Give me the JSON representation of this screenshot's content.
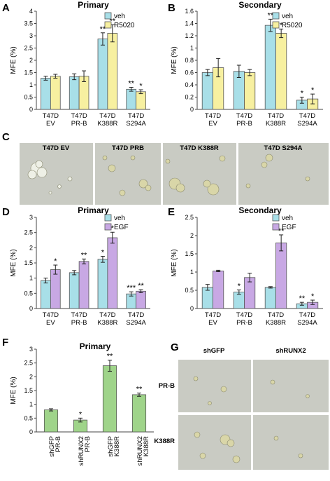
{
  "panel_letters": [
    "A",
    "B",
    "C",
    "D",
    "E",
    "F",
    "G"
  ],
  "colors": {
    "veh": "#a8dfe8",
    "r5020": "#f7f0a0",
    "egf": "#c8a8e4",
    "green": "#9fd48a",
    "photo_bg": "#c9cbc3"
  },
  "chart_data": [
    {
      "id": "A",
      "type": "bar",
      "title": "Primary",
      "ylabel": "MFE (%)",
      "ylim": [
        0,
        4
      ],
      "yticks": [
        "0",
        "0.5",
        "1",
        "1.5",
        "2",
        "2.5",
        "3",
        "3.5",
        "4"
      ],
      "categories": [
        [
          "T47D",
          "EV"
        ],
        [
          "T47D",
          "PR-B"
        ],
        [
          "T47D",
          "K388R"
        ],
        [
          "T47D",
          "S294A"
        ]
      ],
      "legend": [
        "veh",
        "R5020"
      ],
      "series": [
        {
          "name": "veh",
          "color": "#a8dfe8",
          "values": [
            1.27,
            1.33,
            2.87,
            0.82
          ],
          "errors": [
            0.08,
            0.12,
            0.25,
            0.08
          ],
          "stars": [
            "",
            "",
            "**",
            "**"
          ]
        },
        {
          "name": "R5020",
          "color": "#f7f0a0",
          "values": [
            1.35,
            1.35,
            3.1,
            0.72
          ],
          "errors": [
            0.08,
            0.22,
            0.35,
            0.08
          ],
          "stars": [
            "",
            "",
            "**",
            "*"
          ]
        }
      ]
    },
    {
      "id": "B",
      "type": "bar",
      "title": "Secondary",
      "ylabel": "MFE (%)",
      "ylim": [
        0,
        1.6
      ],
      "yticks": [
        "0",
        "0.2",
        "0.4",
        "0.6",
        "0.8",
        "1",
        "1.2",
        "1.4",
        "1.6"
      ],
      "categories": [
        [
          "T47D",
          "EV"
        ],
        [
          "T47D",
          "PR-B"
        ],
        [
          "T47D",
          "K388R"
        ],
        [
          "T47D",
          "S294A"
        ]
      ],
      "legend": [
        "veh",
        "R5020"
      ],
      "series": [
        {
          "name": "veh",
          "color": "#a8dfe8",
          "values": [
            0.6,
            0.62,
            1.37,
            0.15
          ],
          "errors": [
            0.05,
            0.1,
            0.1,
            0.05
          ],
          "stars": [
            "",
            "",
            "**",
            "*"
          ]
        },
        {
          "name": "R5020",
          "color": "#f7f0a0",
          "values": [
            0.68,
            0.6,
            1.24,
            0.17
          ],
          "errors": [
            0.15,
            0.05,
            0.07,
            0.08
          ],
          "stars": [
            "",
            "",
            "*",
            "*"
          ]
        }
      ]
    },
    {
      "id": "D",
      "type": "bar",
      "title": "Primary",
      "ylabel": "MFE (%)",
      "ylim": [
        0,
        3
      ],
      "yticks": [
        "0",
        "0.5",
        "1",
        "1.5",
        "2",
        "2.5",
        "3"
      ],
      "categories": [
        [
          "T47D",
          "EV"
        ],
        [
          "T47D",
          "PR-B"
        ],
        [
          "T47D",
          "K388R"
        ],
        [
          "T47D",
          "S294A"
        ]
      ],
      "legend": [
        "veh",
        "EGF"
      ],
      "series": [
        {
          "name": "veh",
          "color": "#a8dfe8",
          "values": [
            0.92,
            1.18,
            1.62,
            0.48
          ],
          "errors": [
            0.08,
            0.07,
            0.1,
            0.07
          ],
          "stars": [
            "",
            "",
            "*",
            "***"
          ]
        },
        {
          "name": "EGF",
          "color": "#c8a8e4",
          "values": [
            1.28,
            1.55,
            2.33,
            0.57
          ],
          "errors": [
            0.15,
            0.08,
            0.18,
            0.05
          ],
          "stars": [
            "*",
            "**",
            "*",
            "**"
          ]
        }
      ]
    },
    {
      "id": "E",
      "type": "bar",
      "title": "Secondary",
      "ylabel": "MFE (%)",
      "ylim": [
        0,
        2.5
      ],
      "yticks": [
        "0",
        "0.5",
        "1",
        "1.5",
        "2",
        "2.5"
      ],
      "categories": [
        [
          "T47D",
          "EV"
        ],
        [
          "T47D",
          "PR-B"
        ],
        [
          "T47D",
          "K388R"
        ],
        [
          "T47D",
          "S294A"
        ]
      ],
      "legend": [
        "veh",
        "EGF"
      ],
      "series": [
        {
          "name": "veh",
          "color": "#a8dfe8",
          "values": [
            0.58,
            0.45,
            0.58,
            0.13
          ],
          "errors": [
            0.08,
            0.06,
            0.02,
            0.04
          ],
          "stars": [
            "",
            "*",
            "",
            "**"
          ]
        },
        {
          "name": "EGF",
          "color": "#c8a8e4",
          "values": [
            1.03,
            0.85,
            1.8,
            0.17
          ],
          "errors": [
            0.02,
            0.12,
            0.22,
            0.06
          ],
          "stars": [
            "",
            "",
            "**",
            "*"
          ]
        }
      ]
    },
    {
      "id": "F",
      "type": "bar",
      "title": "Primary",
      "ylabel": "MFE (%)",
      "ylim": [
        0,
        3
      ],
      "yticks": [
        "0",
        "0.5",
        "1",
        "1.5",
        "2",
        "2.5",
        "3"
      ],
      "categories": [
        [
          "shGFP",
          "PR-B"
        ],
        [
          "shRUNX2",
          "PR-B"
        ],
        [
          "shGFP",
          "K388R"
        ],
        [
          "shRUNX2",
          "K388R"
        ]
      ],
      "legend": [],
      "series": [
        {
          "name": "",
          "color": "#9fd48a",
          "values": [
            0.8,
            0.43,
            2.4,
            1.35
          ],
          "errors": [
            0.04,
            0.07,
            0.2,
            0.06
          ],
          "stars": [
            "",
            "*",
            "**",
            "**"
          ]
        }
      ]
    }
  ],
  "images_c": {
    "labels": [
      "T47D EV",
      "T47D PRB",
      "T47D K388R",
      "T47D S294A"
    ]
  },
  "images_g": {
    "columns": [
      "shGFP",
      "shRUNX2"
    ],
    "rows": [
      "PR-B",
      "K388R"
    ]
  }
}
